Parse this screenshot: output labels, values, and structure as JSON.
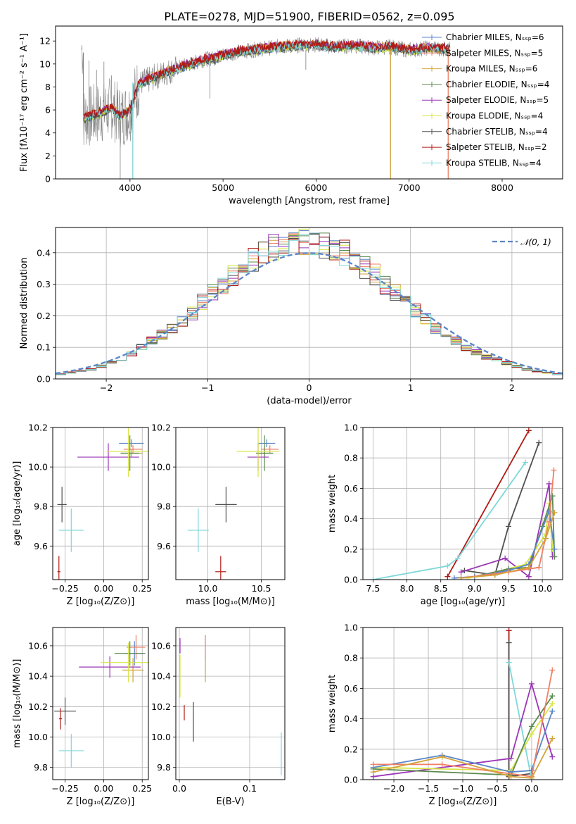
{
  "figure_title": "PLATE=0278, MJD=51900, FIBERID=0562, z=0.095",
  "colors": {
    "Chabrier MILES": "#5a86c8",
    "Salpeter MILES": "#f07f63",
    "Kroupa MILES": "#d4a23a",
    "Chabrier ELODIE": "#5c8a4e",
    "Salpeter ELODIE": "#9b36b7",
    "Kroupa ELODIE": "#d7e544",
    "Chabrier STELIB": "#505050",
    "Salpeter STELIB": "#b01b15",
    "Kroupa STELIB": "#7fd7d9",
    "data": "#808080",
    "normal": "#5a86c8",
    "orange": "#e6832a",
    "pink": "#ee86c2"
  },
  "chart_data": [
    {
      "id": "spectrum",
      "type": "line",
      "title": "PLATE=0278, MJD=51900, FIBERID=0562, z=0.095",
      "xlabel": "wavelength [Angstrom, rest frame]",
      "ylabel": "Flux [fλ10⁻¹⁷ erg cm⁻² s⁻¹ A⁻¹]",
      "xlim": [
        3200,
        8650
      ],
      "ylim": [
        0,
        13.3
      ],
      "xticks": [
        4000,
        5000,
        6000,
        7000,
        8000
      ],
      "yticks": [
        0,
        2,
        4,
        6,
        8,
        10,
        12
      ],
      "legend_position": "right",
      "legend": [
        "Chabrier MILES, Nₛₛₚ=6",
        "Salpeter MILES, Nₛₛₚ=5",
        "Kroupa MILES, Nₛₛₚ=6",
        "Chabrier ELODIE, Nₛₛₚ=4",
        "Salpeter ELODIE, Nₛₛₚ=5",
        "Kroupa ELODIE, Nₛₛₚ=4",
        "Chabrier STELIB, Nₛₛₚ=4",
        "Salpeter STELIB, Nₛₛₚ=2",
        "Kroupa STELIB, Nₛₛₚ=4"
      ],
      "continuum": {
        "x": [
          3500,
          3600,
          3700,
          3800,
          3900,
          4000,
          4100,
          4200,
          4300,
          4400,
          4500,
          4600,
          4700,
          4800,
          4900,
          5000,
          5200,
          5400,
          5600,
          5800,
          6000,
          6200,
          6400,
          6600,
          6800,
          7000,
          7200,
          7400
        ],
        "y": [
          5.3,
          5.5,
          5.8,
          6.2,
          5.4,
          6.0,
          8.3,
          8.6,
          9.0,
          9.3,
          9.6,
          9.9,
          10.1,
          10.4,
          10.5,
          10.8,
          11.1,
          11.3,
          11.5,
          11.6,
          11.7,
          11.5,
          11.6,
          11.4,
          11.5,
          11.2,
          11.4,
          11.3
        ]
      },
      "spikes_data": [
        {
          "x": 3500,
          "y": 11.0
        },
        {
          "x": 3560,
          "y": 10.3
        },
        {
          "x": 3640,
          "y": 9.5
        },
        {
          "x": 3720,
          "y": 10.2
        },
        {
          "x": 3800,
          "y": 9.0
        },
        {
          "x": 3895,
          "y": 0
        },
        {
          "x": 4030,
          "y": 0
        },
        {
          "x": 4860,
          "y": 7.0
        },
        {
          "x": 5890,
          "y": 9.5
        },
        {
          "x": 6800,
          "y": 0
        },
        {
          "x": 7420,
          "y": 0
        }
      ]
    },
    {
      "id": "residuals",
      "type": "area",
      "xlabel": "(data-model)/error",
      "ylabel": "Normed distribution",
      "xlim": [
        -2.5,
        2.5
      ],
      "ylim": [
        0,
        0.48
      ],
      "xticks": [
        -2,
        -1,
        0,
        1,
        2
      ],
      "yticks": [
        0.0,
        0.1,
        0.2,
        0.3,
        0.4
      ],
      "legend": [
        "𝒩(0, 1)"
      ],
      "legend_position": "top-right",
      "bins": {
        "start": -2.5,
        "width": 0.1,
        "count": 50
      },
      "hist_base": [
        0.015,
        0.02,
        0.025,
        0.03,
        0.04,
        0.055,
        0.065,
        0.08,
        0.1,
        0.12,
        0.14,
        0.16,
        0.185,
        0.21,
        0.245,
        0.27,
        0.3,
        0.33,
        0.355,
        0.375,
        0.4,
        0.415,
        0.425,
        0.435,
        0.44,
        0.435,
        0.425,
        0.415,
        0.4,
        0.38,
        0.355,
        0.33,
        0.3,
        0.27,
        0.245,
        0.215,
        0.19,
        0.16,
        0.14,
        0.12,
        0.1,
        0.085,
        0.07,
        0.06,
        0.05,
        0.04,
        0.03,
        0.025,
        0.02,
        0.015
      ]
    },
    {
      "id": "age_vs_Z",
      "type": "scatter",
      "xlabel": "Z [log₁₀(Z/Z⊙)]",
      "ylabel": "age  [log₁₀(age/yr)]",
      "xlim": [
        -0.33,
        0.29
      ],
      "ylim": [
        9.43,
        10.2
      ],
      "xticks": [
        -0.25,
        0.0,
        0.25
      ],
      "xticklabels": [
        "−0.25",
        "0.00",
        "0.25"
      ],
      "yticks": [
        9.6,
        9.8,
        10.0,
        10.2
      ],
      "points": [
        {
          "model": "Chabrier MILES",
          "x": 0.18,
          "y": 10.12,
          "xerr": 0.08,
          "yerr": 0.02
        },
        {
          "model": "Salpeter MILES",
          "x": 0.19,
          "y": 10.09,
          "xerr": 0.06,
          "yerr": 0.02
        },
        {
          "model": "Kroupa MILES",
          "x": 0.18,
          "y": 10.07,
          "xerr": 0.07,
          "yerr": 0.02
        },
        {
          "model": "Chabrier ELODIE",
          "x": 0.17,
          "y": 10.07,
          "xerr": 0.06,
          "yerr": 0.09
        },
        {
          "model": "Salpeter ELODIE",
          "x": 0.03,
          "y": 10.05,
          "xerr": 0.2,
          "yerr": 0.07
        },
        {
          "model": "Kroupa ELODIE",
          "x": 0.16,
          "y": 10.08,
          "xerr": 0.14,
          "yerr": 0.13
        },
        {
          "model": "Chabrier STELIB",
          "x": -0.27,
          "y": 9.81,
          "xerr": 0.03,
          "yerr": 0.09
        },
        {
          "model": "Salpeter STELIB",
          "x": -0.29,
          "y": 9.47,
          "xerr": 0.01,
          "yerr": 0.08
        },
        {
          "model": "Kroupa STELIB",
          "x": -0.21,
          "y": 9.68,
          "xerr": 0.08,
          "yerr": 0.11
        }
      ]
    },
    {
      "id": "age_vs_mass",
      "type": "scatter",
      "xlabel": "mass [log₁₀(M/M⊙)]",
      "ylabel": "",
      "xlim": [
        9.7,
        10.72
      ],
      "ylim": [
        9.43,
        10.2
      ],
      "xticks": [
        10.0,
        10.5
      ],
      "yticks": [
        9.6,
        9.8,
        10.0,
        10.2
      ],
      "points": [
        {
          "model": "Chabrier MILES",
          "x": 10.55,
          "y": 10.12,
          "xerr": 0.08,
          "yerr": 0.02
        },
        {
          "model": "Salpeter MILES",
          "x": 10.58,
          "y": 10.09,
          "xerr": 0.08,
          "yerr": 0.02
        },
        {
          "model": "Kroupa MILES",
          "x": 10.53,
          "y": 10.07,
          "xerr": 0.08,
          "yerr": 0.02
        },
        {
          "model": "Chabrier ELODIE",
          "x": 10.53,
          "y": 10.07,
          "xerr": 0.08,
          "yerr": 0.09
        },
        {
          "model": "Salpeter ELODIE",
          "x": 10.47,
          "y": 10.05,
          "xerr": 0.1,
          "yerr": 0.07
        },
        {
          "model": "Kroupa ELODIE",
          "x": 10.47,
          "y": 10.08,
          "xerr": 0.2,
          "yerr": 0.13
        },
        {
          "model": "Chabrier STELIB",
          "x": 10.17,
          "y": 9.81,
          "xerr": 0.1,
          "yerr": 0.09
        },
        {
          "model": "Salpeter STELIB",
          "x": 10.12,
          "y": 9.47,
          "xerr": 0.05,
          "yerr": 0.08
        },
        {
          "model": "Kroupa STELIB",
          "x": 9.91,
          "y": 9.68,
          "xerr": 0.1,
          "yerr": 0.11
        }
      ]
    },
    {
      "id": "weight_vs_age",
      "type": "line",
      "xlabel": "age  [log₁₀(age/yr)]",
      "ylabel": "mass weight",
      "xlim": [
        7.35,
        10.3
      ],
      "ylim": [
        0,
        1.0
      ],
      "xticks": [
        7.5,
        8.0,
        8.5,
        9.0,
        9.5,
        10.0
      ],
      "yticks": [
        0.0,
        0.2,
        0.4,
        0.6,
        0.8,
        1.0
      ],
      "series": [
        {
          "model": "Salpeter STELIB",
          "x": [
            8.6,
            9.8
          ],
          "y": [
            0.02,
            0.98
          ]
        },
        {
          "model": "Kroupa STELIB",
          "x": [
            7.5,
            8.6,
            8.75,
            9.75
          ],
          "y": [
            0.0,
            0.09,
            0.14,
            0.77
          ]
        },
        {
          "model": "Chabrier STELIB",
          "x": [
            8.85,
            9.3,
            9.5,
            9.95
          ],
          "y": [
            0.06,
            0.03,
            0.35,
            0.9
          ]
        },
        {
          "model": "Salpeter ELODIE",
          "x": [
            8.8,
            9.45,
            9.8,
            10.1,
            10.15
          ],
          "y": [
            0.05,
            0.14,
            0.02,
            0.63,
            0.15
          ]
        },
        {
          "model": "Kroupa ELODIE",
          "x": [
            8.9,
            9.4,
            9.75,
            10.05,
            10.1,
            10.15
          ],
          "y": [
            0.01,
            0.06,
            0.1,
            0.3,
            0.5,
            0.2
          ]
        },
        {
          "model": "Chabrier ELODIE",
          "x": [
            9.0,
            9.5,
            9.8,
            10.0,
            10.15,
            10.18
          ],
          "y": [
            0.02,
            0.07,
            0.08,
            0.35,
            0.55,
            0.15
          ]
        },
        {
          "model": "Chabrier MILES",
          "x": [
            8.7,
            9.0,
            9.5,
            9.8,
            10.1,
            10.18
          ],
          "y": [
            0.01,
            0.02,
            0.06,
            0.1,
            0.45,
            0.2
          ]
        },
        {
          "model": "Salpeter MILES",
          "x": [
            8.8,
            9.5,
            9.95,
            10.1,
            10.17
          ],
          "y": [
            0.01,
            0.05,
            0.08,
            0.38,
            0.72
          ]
        },
        {
          "model": "Kroupa MILES",
          "x": [
            8.8,
            9.3,
            9.8,
            10.05,
            10.18
          ],
          "y": [
            0.01,
            0.03,
            0.08,
            0.27,
            0.44
          ]
        }
      ]
    },
    {
      "id": "mass_vs_Z",
      "type": "scatter",
      "xlabel": "Z [log₁₀(Z/Z⊙)]",
      "ylabel": "mass [log₁₀(M/M⊙)]",
      "xlim": [
        -0.33,
        0.29
      ],
      "ylim": [
        9.72,
        10.72
      ],
      "xticks": [
        -0.25,
        0.0,
        0.25
      ],
      "xticklabels": [
        "−0.25",
        "0.00",
        "0.25"
      ],
      "yticks": [
        9.8,
        10.0,
        10.2,
        10.4,
        10.6
      ],
      "points": [
        {
          "model": "Chabrier MILES",
          "x": 0.2,
          "y": 10.55,
          "xerr": 0.06,
          "yerr": 0.08
        },
        {
          "model": "Salpeter MILES",
          "x": 0.21,
          "y": 10.59,
          "xerr": 0.06,
          "yerr": 0.08
        },
        {
          "model": "Kroupa MILES",
          "x": 0.19,
          "y": 10.44,
          "xerr": 0.07,
          "yerr": 0.08
        },
        {
          "model": "Chabrier ELODIE",
          "x": 0.17,
          "y": 10.55,
          "xerr": 0.1,
          "yerr": 0.08
        },
        {
          "model": "Salpeter ELODIE",
          "x": 0.04,
          "y": 10.46,
          "xerr": 0.2,
          "yerr": 0.07
        },
        {
          "model": "Kroupa ELODIE",
          "x": 0.16,
          "y": 10.49,
          "xerr": 0.18,
          "yerr": 0.13
        },
        {
          "model": "Chabrier STELIB",
          "x": -0.25,
          "y": 10.17,
          "xerr": 0.07,
          "yerr": 0.09
        },
        {
          "model": "Salpeter STELIB",
          "x": -0.28,
          "y": 10.12,
          "xerr": 0.01,
          "yerr": 0.07
        },
        {
          "model": "Kroupa STELIB",
          "x": -0.21,
          "y": 9.91,
          "xerr": 0.08,
          "yerr": 0.11
        }
      ]
    },
    {
      "id": "mass_vs_ebv",
      "type": "scatter",
      "xlabel": "E(B-V)",
      "ylabel": "",
      "xlim": [
        -0.005,
        0.15
      ],
      "ylim": [
        9.72,
        10.72
      ],
      "xticks": [
        0.0,
        0.1
      ],
      "yticks": [
        9.8,
        10.0,
        10.2,
        10.4,
        10.6
      ],
      "points": [
        {
          "model": "Salpeter MILES",
          "x": 0.037,
          "y": 10.59,
          "xerr": 0,
          "yerr": 0.08
        },
        {
          "model": "Kroupa MILES",
          "x": 0.037,
          "y": 10.44,
          "xerr": 0,
          "yerr": 0.08
        },
        {
          "model": "Salpeter ELODIE",
          "x": 0.001,
          "y": 10.6,
          "xerr": 0,
          "yerr": 0.05
        },
        {
          "model": "Kroupa ELODIE",
          "x": 0.001,
          "y": 10.4,
          "xerr": 0,
          "yerr": 0.14
        },
        {
          "model": "Chabrier STELIB",
          "x": 0.02,
          "y": 10.1,
          "xerr": 0,
          "yerr": 0.13
        },
        {
          "model": "Salpeter STELIB",
          "x": 0.007,
          "y": 10.16,
          "xerr": 0,
          "yerr": 0.05
        },
        {
          "model": "Kroupa STELIB",
          "x": 0.145,
          "y": 9.89,
          "xerr": 0,
          "yerr": 0.14
        }
      ]
    },
    {
      "id": "weight_vs_Z",
      "type": "line",
      "xlabel": "Z [log₁₀(Z/Z⊙)]",
      "ylabel": "mass weight",
      "xlim": [
        -2.45,
        0.45
      ],
      "ylim": [
        0,
        1.0
      ],
      "xticks": [
        -2.0,
        -1.5,
        -1.0,
        -0.5,
        0.0
      ],
      "yticks": [
        0.0,
        0.2,
        0.4,
        0.6,
        0.8,
        1.0
      ],
      "series": [
        {
          "model": "Salpeter STELIB",
          "x": [
            -0.33,
            -0.33
          ],
          "y": [
            0.02,
            0.98
          ]
        },
        {
          "model": "Chabrier STELIB",
          "x": [
            -0.33,
            -0.33,
            0.0
          ],
          "y": [
            0.9,
            0.02,
            0.04
          ]
        },
        {
          "model": "Kroupa STELIB",
          "x": [
            -0.33,
            0.0,
            0.0
          ],
          "y": [
            0.77,
            0.0,
            0.09
          ]
        },
        {
          "model": "Salpeter ELODIE",
          "x": [
            -2.3,
            -0.3,
            0.0,
            0.3
          ],
          "y": [
            0.02,
            0.14,
            0.63,
            0.15
          ]
        },
        {
          "model": "Kroupa ELODIE",
          "x": [
            -2.3,
            -0.3,
            0.0,
            0.3
          ],
          "y": [
            0.08,
            0.06,
            0.3,
            0.5
          ]
        },
        {
          "model": "Chabrier ELODIE",
          "x": [
            -2.3,
            -0.3,
            0.0,
            0.3
          ],
          "y": [
            0.07,
            0.03,
            0.35,
            0.55
          ]
        },
        {
          "model": "Chabrier MILES",
          "x": [
            -2.3,
            -1.3,
            -0.3,
            0.0,
            0.3
          ],
          "y": [
            0.08,
            0.16,
            0.05,
            0.06,
            0.45
          ]
        },
        {
          "model": "Salpeter MILES",
          "x": [
            -2.3,
            -1.3,
            0.0,
            0.3
          ],
          "y": [
            0.1,
            0.1,
            0.02,
            0.72
          ]
        },
        {
          "model": "Kroupa MILES",
          "x": [
            -2.3,
            -1.3,
            -0.3,
            0.0,
            0.3
          ],
          "y": [
            0.05,
            0.15,
            0.02,
            0.01,
            0.27
          ]
        }
      ]
    }
  ]
}
